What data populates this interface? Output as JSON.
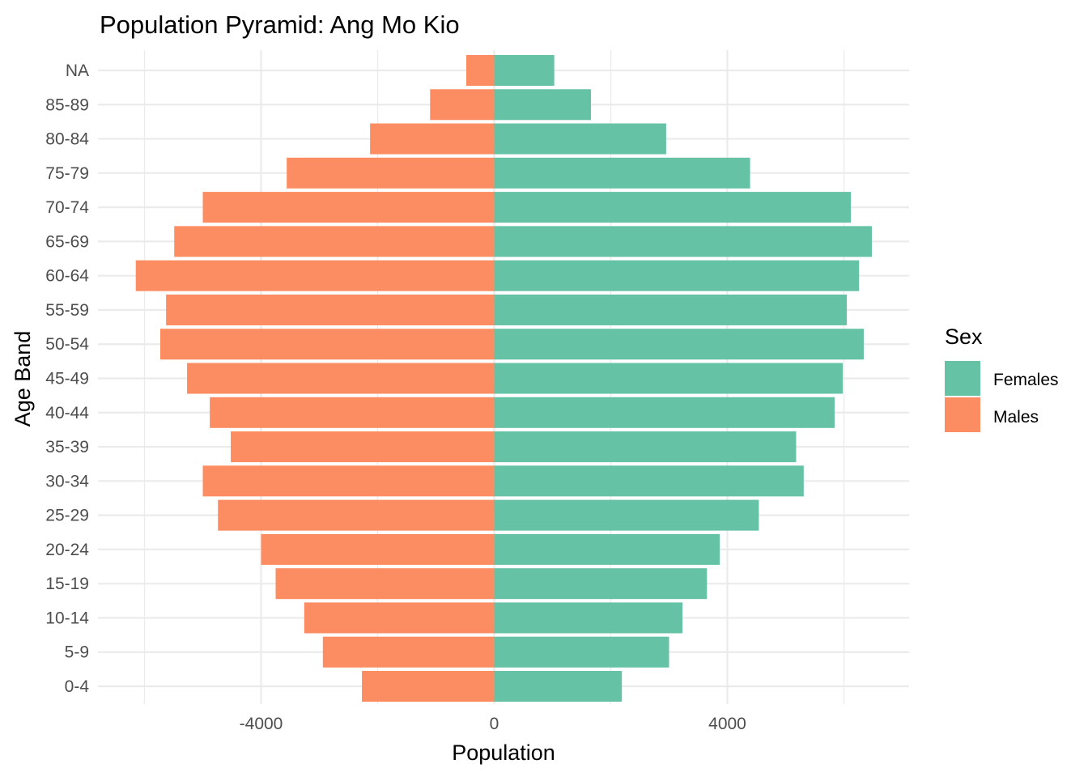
{
  "chart_data": {
    "type": "bar",
    "orientation": "horizontal",
    "title": "Population Pyramid: Ang Mo Kio",
    "xlabel": "Population",
    "ylabel": "Age Band",
    "categories": [
      "0-4",
      "5-9",
      "10-14",
      "15-19",
      "20-24",
      "25-29",
      "30-34",
      "35-39",
      "40-44",
      "45-49",
      "50-54",
      "55-59",
      "60-64",
      "65-69",
      "70-74",
      "75-79",
      "80-84",
      "85-89",
      "NA"
    ],
    "series": [
      {
        "name": "Females",
        "color": "#66C2A5",
        "values": [
          2190,
          3000,
          3230,
          3650,
          3870,
          4540,
          5310,
          5180,
          5840,
          5980,
          6340,
          6050,
          6260,
          6480,
          6120,
          4390,
          2950,
          1660,
          1030
        ]
      },
      {
        "name": "Males",
        "color": "#FC8D62",
        "values": [
          -2270,
          -2940,
          -3260,
          -3750,
          -4000,
          -4740,
          -5000,
          -4520,
          -4880,
          -5270,
          -5730,
          -5630,
          -6150,
          -5490,
          -5000,
          -3560,
          -2130,
          -1100,
          -480
        ]
      }
    ],
    "xlim": [
      -6500,
      7100
    ],
    "xticks": [
      -4000,
      0,
      4000
    ],
    "xtick_labels": [
      "-4000",
      "0",
      "4000"
    ],
    "grid": true,
    "legend": {
      "title": "Sex",
      "position": "right",
      "entries": [
        "Females",
        "Males"
      ]
    }
  }
}
